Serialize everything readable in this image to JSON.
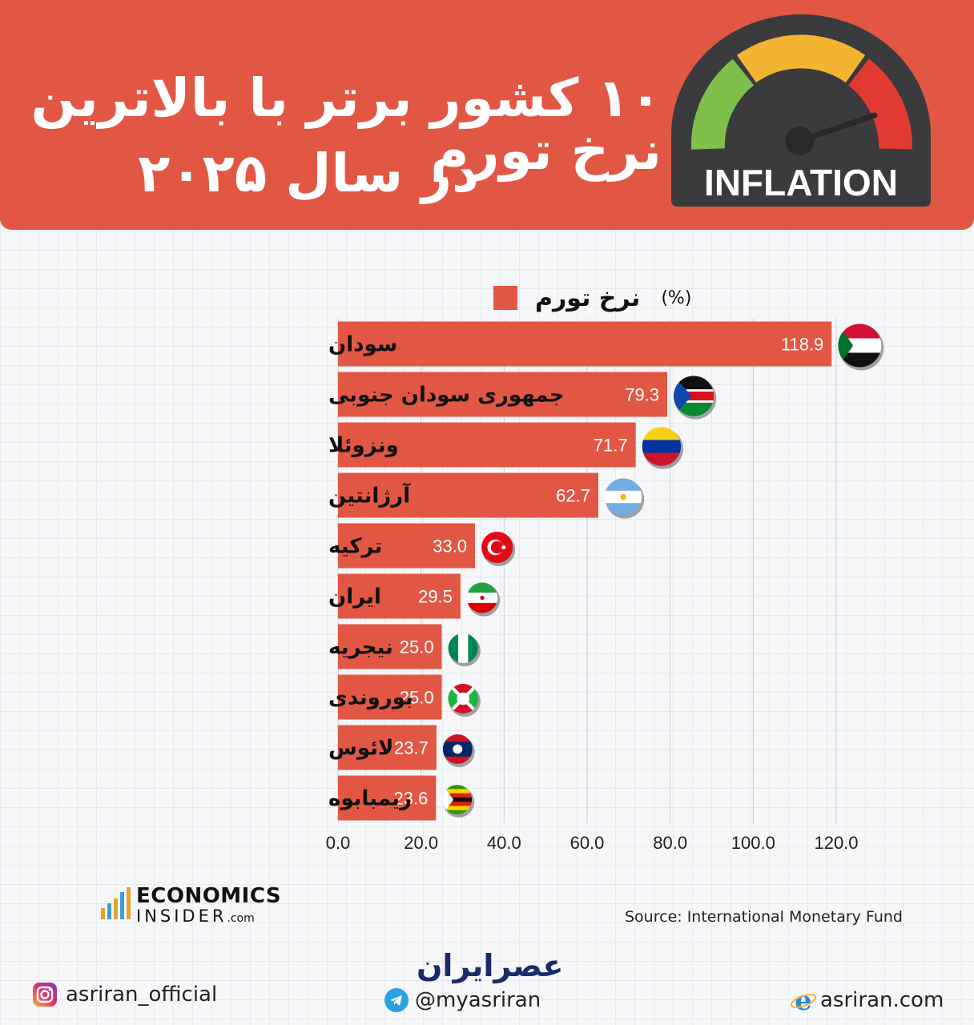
{
  "header": {
    "title_line1": "۱۰ کشور برتر با بالاترین نرخ تورم",
    "title_line2": "در سال ۲۰۲۵",
    "gauge_label": "INFLATION"
  },
  "legend": {
    "label": "نرخ تورم",
    "unit": "(%)"
  },
  "chart_data": {
    "type": "bar",
    "orientation": "horizontal",
    "categories": [
      "سودان",
      "جمهوری سودان جنوبی",
      "ونزوئلا",
      "آرژانتین",
      "ترکیه",
      "ایران",
      "نیجریه",
      "بوروندی",
      "لائوس",
      "زیمبابوه"
    ],
    "series": [
      {
        "name": "نرخ تورم",
        "values": [
          118.9,
          79.3,
          71.7,
          62.7,
          33.0,
          29.5,
          25.0,
          25.0,
          23.7,
          23.6
        ]
      }
    ],
    "value_labels": [
      "118.9",
      "79.3",
      "71.7",
      "62.7",
      "33.0",
      "29.5",
      "25.0",
      "25.0",
      "23.7",
      "23.6"
    ],
    "xlim": [
      0,
      120
    ],
    "xticks": [
      "0.0",
      "20.0",
      "40.0",
      "60.0",
      "80.0",
      "100.0",
      "120.0"
    ],
    "grid": true,
    "legend_position": "top",
    "bar_color": "#e25744",
    "flags": [
      "sudan-flag-icon",
      "south-sudan-flag-icon",
      "venezuela-flag-icon",
      "argentina-flag-icon",
      "turkey-flag-icon",
      "iran-flag-icon",
      "nigeria-flag-icon",
      "burundi-flag-icon",
      "laos-flag-icon",
      "zimbabwe-flag-icon"
    ]
  },
  "footer": {
    "brand_line1": "ECONOMICS",
    "brand_line2": "INSIDER",
    "brand_suffix": ".com",
    "source": "Source: International Monetary Fund",
    "logo_text": "عصرایران",
    "instagram": "asriran_official",
    "telegram": "@myasriran",
    "website": "asriran.com"
  },
  "colors": {
    "accent": "#e25744",
    "dark": "#3a3a3a"
  }
}
